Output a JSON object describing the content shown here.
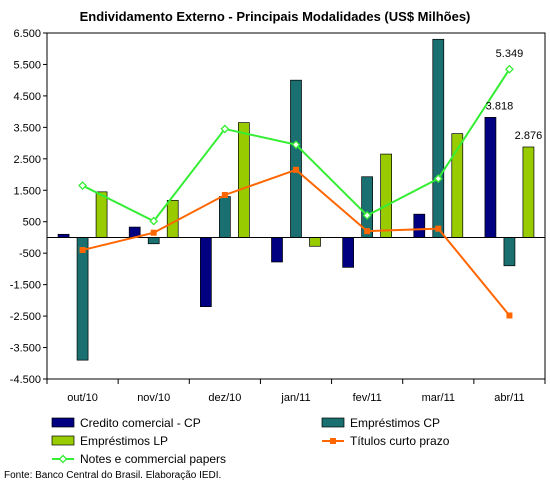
{
  "chart_data": {
    "type": "bar",
    "title": "Endividamento Externo -  Principais Modalidades (US$ Milhões)",
    "categories": [
      "out/10",
      "nov/10",
      "dez/10",
      "jan/11",
      "fev/11",
      "mar/11",
      "abr/11"
    ],
    "ylim": [
      -4500,
      6500
    ],
    "yticks": [
      6500,
      5500,
      4500,
      3500,
      2500,
      1500,
      500,
      -500,
      -1500,
      -2500,
      -3500,
      -4500
    ],
    "ytick_labels": [
      "6.500",
      "5.500",
      "4.500",
      "3.500",
      "2.500",
      "1.500",
      "500",
      "-500",
      "-1.500",
      "-2.500",
      "-3.500",
      "-4.500"
    ],
    "grid": false,
    "legend_position": "bottom",
    "bar_series": [
      {
        "name": "Credito comercial - CP",
        "color": "#000080",
        "values": [
          100,
          330,
          -2200,
          -780,
          -950,
          740,
          3818
        ]
      },
      {
        "name": "Empréstimos CP",
        "color": "#1a7070",
        "values": [
          -3900,
          -200,
          1300,
          5000,
          1930,
          6300,
          -900
        ]
      },
      {
        "name": "Empréstimos LP",
        "color": "#99cc00",
        "values": [
          1450,
          1180,
          3650,
          -280,
          2650,
          3300,
          2876
        ]
      }
    ],
    "line_series": [
      {
        "name": "Notes e commercial papers",
        "color": "#33ee33",
        "marker": "diamond-open",
        "values": [
          1650,
          520,
          3450,
          2950,
          700,
          1870,
          5349
        ]
      },
      {
        "name": "Títulos curto prazo",
        "color": "#ff6600",
        "marker": "square",
        "values": [
          -400,
          150,
          1350,
          2150,
          200,
          280,
          -2480
        ]
      }
    ],
    "data_labels": [
      {
        "series": "Notes e commercial papers",
        "category": "abr/11",
        "text": "5.349"
      },
      {
        "series": "Credito comercial - CP",
        "category": "abr/11",
        "text": "3.818"
      },
      {
        "series": "Empréstimos LP",
        "category": "abr/11",
        "text": "2.876"
      }
    ],
    "source": "Fonte: Banco Central do Brasil. Elaboração IEDI."
  }
}
